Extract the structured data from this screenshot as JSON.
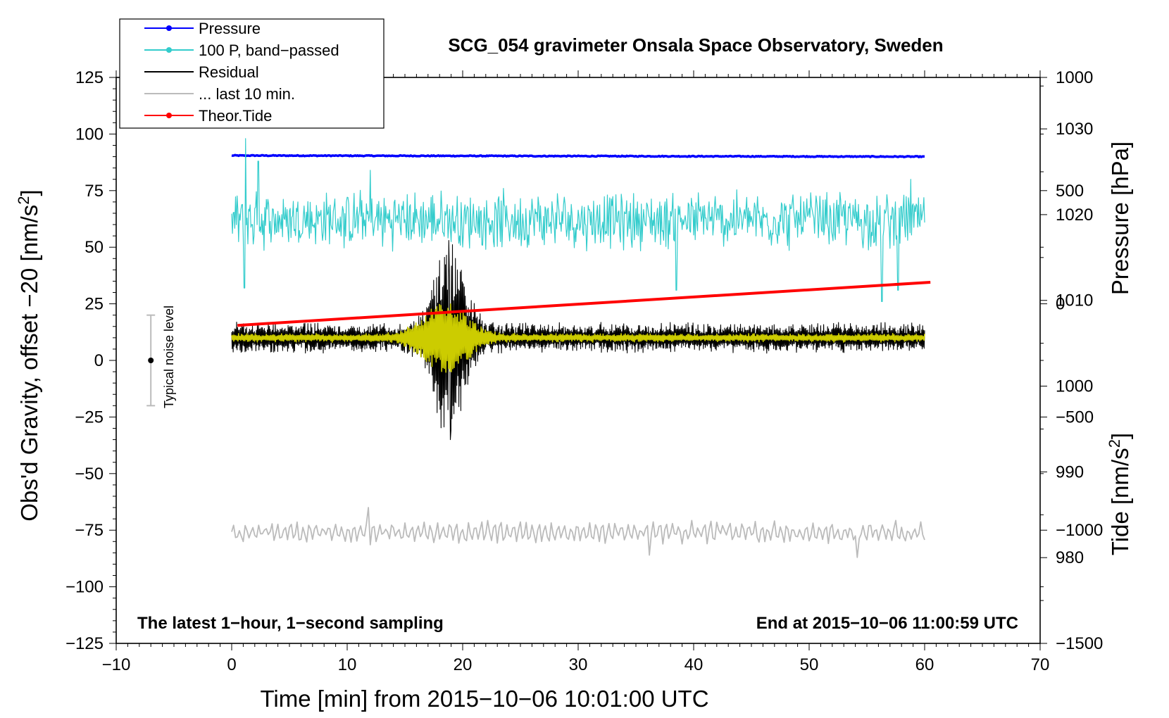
{
  "chart_data": {
    "type": "line",
    "title": "SCG_054 gravimeter Onsala Space Observatory, Sweden",
    "xlabel": "Time [min] from 2015−10−06 10:01:00 UTC",
    "ylabel_left_prefix": "Obs'd Gravity, offset −20 [nm/s",
    "ylabel_left_sup": "2",
    "ylabel_left_suffix": "]",
    "ylabel_right_top": "Pressure [hPa]",
    "ylabel_right_bottom_prefix": "Tide [nm/s",
    "ylabel_right_bottom_sup": "2",
    "ylabel_right_bottom_suffix": "]",
    "xlim": [
      -10,
      70
    ],
    "ylim_left": [
      -125,
      125
    ],
    "x_ticks": [
      -10,
      0,
      10,
      20,
      30,
      40,
      50,
      60,
      70
    ],
    "x_tick_labels": [
      "−10",
      "0",
      "10",
      "20",
      "30",
      "40",
      "50",
      "60",
      "70"
    ],
    "y_left_ticks": [
      125,
      100,
      75,
      50,
      25,
      0,
      -25,
      -50,
      -75,
      -100,
      -125
    ],
    "y_left_tick_labels": [
      "125",
      "100",
      "75",
      "50",
      "25",
      "0",
      "−25",
      "−50",
      "−75",
      "−100",
      "−125"
    ],
    "pressure_axis": {
      "range": [
        970,
        1036
      ],
      "ticks": [
        1030,
        1020,
        1010,
        1000,
        990,
        980
      ],
      "tick_labels": [
        "1030",
        "1020",
        "1010",
        "1000",
        "990",
        "980"
      ]
    },
    "tide_axis": {
      "range": [
        -1500,
        1000
      ],
      "ticks": [
        1000,
        500,
        0,
        -500,
        -1000,
        -1500
      ],
      "tick_labels": [
        "1000",
        "500",
        "0",
        "−500",
        "−1000",
        "−1500"
      ]
    },
    "legend": {
      "position": "top-left",
      "entries": [
        {
          "label": "Pressure",
          "color": "#0000ff",
          "marker": true
        },
        {
          "label": "100 P, band−passed",
          "color": "#33cccc",
          "marker": true
        },
        {
          "label": "Residual",
          "color": "#000000",
          "marker": false
        },
        {
          "label": "... last 10 min.",
          "color": "#bbbbbb",
          "marker": false
        },
        {
          "label": "Theor.Tide",
          "color": "#ff0000",
          "marker": true
        }
      ]
    },
    "noise_bar": {
      "label": "Typical noise level",
      "x": -7,
      "center": 0,
      "low": -20,
      "high": 20
    },
    "annotation_left": "The latest 1−hour, 1−second sampling",
    "annotation_right": "End at 2015−10−06 11:00:59 UTC",
    "series": [
      {
        "name": "Pressure",
        "color": "#0000ff",
        "axis": "left",
        "x_start": 0,
        "x_end": 60,
        "y_start": 90.5,
        "y_end": 90,
        "noise": 0.4
      },
      {
        "name": "100 P, band-passed",
        "color": "#33cccc",
        "axis": "left",
        "x_start": 0,
        "x_end": 60,
        "baseline": 62,
        "amplitude": 12,
        "spikes": [
          [
            1.2,
            98
          ],
          [
            1.1,
            32
          ],
          [
            2.3,
            88
          ],
          [
            12,
            84
          ],
          [
            38.5,
            31
          ],
          [
            56.3,
            26
          ],
          [
            57.7,
            31
          ],
          [
            58.8,
            80
          ]
        ]
      },
      {
        "name": "Residual",
        "color": "#000000",
        "axis": "left",
        "x_start": 0,
        "x_end": 60,
        "baseline": 10,
        "amplitude": 6,
        "event_center": 18.8,
        "event_peak": 53,
        "event_trough": -35
      },
      {
        "name": "Residual (smoothed)",
        "color": "#cccc00",
        "axis": "left",
        "x_start": 0,
        "x_end": 60,
        "baseline": 10,
        "amplitude": 2,
        "event_center": 18.5,
        "event_peak": 25,
        "event_trough": 0
      },
      {
        "name": "... last 10 min.",
        "color": "#bbbbbb",
        "axis": "left",
        "x_start": 0,
        "x_end": 60,
        "baseline": -76,
        "amplitude": 4,
        "spikes": [
          [
            11.8,
            -65
          ],
          [
            36.2,
            -86
          ],
          [
            54.2,
            -87
          ]
        ]
      },
      {
        "name": "Theor.Tide",
        "color": "#ff0000",
        "axis": "tide",
        "x": [
          0.5,
          60.5
        ],
        "y": [
          -95,
          95
        ]
      }
    ]
  }
}
